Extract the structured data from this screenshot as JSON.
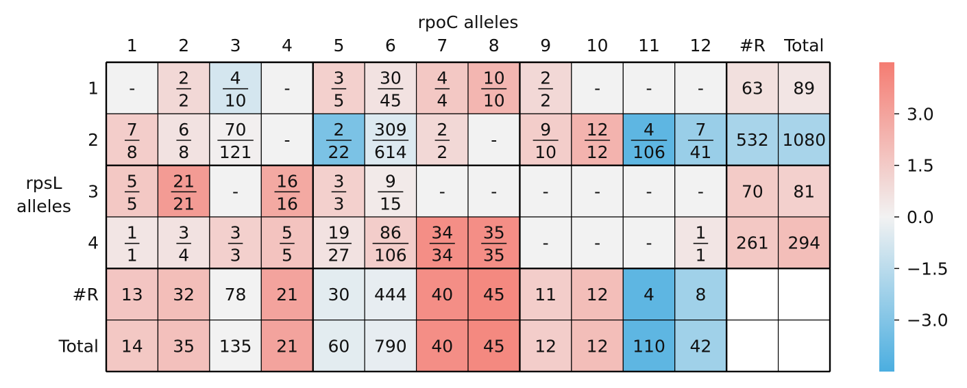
{
  "chart_data": {
    "type": "heatmap",
    "title": "rpoC alleles",
    "xlabel": "rpoC alleles",
    "ylabel": "rpsL alleles",
    "col_labels": [
      "1",
      "2",
      "3",
      "4",
      "5",
      "6",
      "7",
      "8",
      "9",
      "10",
      "11",
      "12",
      "#R",
      "Total"
    ],
    "row_labels": [
      "1",
      "2",
      "3",
      "4",
      "#R",
      "Total"
    ],
    "cells": [
      [
        {
          "text": "-",
          "score": 0
        },
        {
          "num": "2",
          "den": "2",
          "score": 1.0
        },
        {
          "num": "4",
          "den": "10",
          "score": -0.8
        },
        {
          "text": "-",
          "score": 0
        },
        {
          "num": "3",
          "den": "5",
          "score": 1.3
        },
        {
          "num": "30",
          "den": "45",
          "score": 0.6
        },
        {
          "num": "4",
          "den": "4",
          "score": 1.6
        },
        {
          "num": "10",
          "den": "10",
          "score": 2.3
        },
        {
          "num": "2",
          "den": "2",
          "score": 1.0
        },
        {
          "text": "-",
          "score": 0
        },
        {
          "text": "-",
          "score": 0
        },
        {
          "text": "-",
          "score": 0
        },
        {
          "text": "63",
          "score": 0.7
        },
        {
          "text": "89",
          "score": 0.5
        }
      ],
      [
        {
          "num": "7",
          "den": "8",
          "score": 1.4
        },
        {
          "num": "6",
          "den": "8",
          "score": 0.6
        },
        {
          "num": "70",
          "den": "121",
          "score": 0.1
        },
        {
          "text": "-",
          "score": 0
        },
        {
          "num": "2",
          "den": "22",
          "score": -3.2
        },
        {
          "num": "309",
          "den": "614",
          "score": -0.6
        },
        {
          "num": "2",
          "den": "2",
          "score": 1.0
        },
        {
          "text": "-",
          "score": 0
        },
        {
          "num": "9",
          "den": "10",
          "score": 1.4
        },
        {
          "num": "12",
          "den": "12",
          "score": 2.4
        },
        {
          "num": "4",
          "den": "106",
          "score": -4.0
        },
        {
          "num": "7",
          "den": "41",
          "score": -2.4
        },
        {
          "text": "532",
          "score": -2.0
        },
        {
          "text": "1080",
          "score": -2.0
        }
      ],
      [
        {
          "num": "5",
          "den": "5",
          "score": 1.6
        },
        {
          "num": "21",
          "den": "21",
          "score": 3.3
        },
        {
          "text": "-",
          "score": 0
        },
        {
          "num": "16",
          "den": "16",
          "score": 2.8
        },
        {
          "num": "3",
          "den": "3",
          "score": 1.3
        },
        {
          "num": "9",
          "den": "15",
          "score": 0.3
        },
        {
          "text": "-",
          "score": 0
        },
        {
          "text": "-",
          "score": 0
        },
        {
          "text": "-",
          "score": 0
        },
        {
          "text": "-",
          "score": 0
        },
        {
          "text": "-",
          "score": 0
        },
        {
          "text": "-",
          "score": 0
        },
        {
          "text": "70",
          "score": 1.5
        },
        {
          "text": "81",
          "score": 1.3
        }
      ],
      [
        {
          "num": "1",
          "den": "1",
          "score": 0.5
        },
        {
          "num": "3",
          "den": "4",
          "score": 0.6
        },
        {
          "num": "3",
          "den": "3",
          "score": 1.3
        },
        {
          "num": "5",
          "den": "5",
          "score": 1.8
        },
        {
          "num": "19",
          "den": "27",
          "score": 0.6
        },
        {
          "num": "86",
          "den": "106",
          "score": 1.4
        },
        {
          "num": "34",
          "den": "34",
          "score": 3.8
        },
        {
          "num": "35",
          "den": "35",
          "score": 3.8
        },
        {
          "text": "-",
          "score": 0
        },
        {
          "text": "-",
          "score": 0
        },
        {
          "text": "-",
          "score": 0
        },
        {
          "num": "1",
          "den": "1",
          "score": 0.5
        },
        {
          "text": "261",
          "score": 1.6
        },
        {
          "text": "294",
          "score": 2.0
        }
      ],
      [
        {
          "text": "13",
          "score": 1.7
        },
        {
          "text": "32",
          "score": 2.0
        },
        {
          "text": "78",
          "score": 0
        },
        {
          "text": "21",
          "score": 3.0
        },
        {
          "text": "30",
          "score": -0.4
        },
        {
          "text": "444",
          "score": -0.3
        },
        {
          "text": "40",
          "score": 3.8
        },
        {
          "text": "45",
          "score": 4.0
        },
        {
          "text": "11",
          "score": 1.4
        },
        {
          "text": "12",
          "score": 2.0
        },
        {
          "text": "4",
          "score": -4.0
        },
        {
          "text": "8",
          "score": -2.2
        },
        {
          "text": "",
          "score": null
        },
        {
          "text": "",
          "score": null
        }
      ],
      [
        {
          "text": "14",
          "score": 1.6
        },
        {
          "text": "35",
          "score": 1.9
        },
        {
          "text": "135",
          "score": 0
        },
        {
          "text": "21",
          "score": 3.0
        },
        {
          "text": "60",
          "score": -0.4
        },
        {
          "text": "790",
          "score": -0.3
        },
        {
          "text": "40",
          "score": 3.8
        },
        {
          "text": "45",
          "score": 4.0
        },
        {
          "text": "12",
          "score": 1.4
        },
        {
          "text": "12",
          "score": 2.0
        },
        {
          "text": "110",
          "score": -4.0
        },
        {
          "text": "42",
          "score": -2.2
        },
        {
          "text": "",
          "score": null
        },
        {
          "text": "",
          "score": null
        }
      ]
    ],
    "colorbar": {
      "ticks": [
        "3.0",
        "1.5",
        "0.0",
        "−1.5",
        "−3.0"
      ],
      "tick_values": [
        3.0,
        1.5,
        0.0,
        -1.5,
        -3.0
      ],
      "range": [
        -4.5,
        4.5
      ]
    },
    "colors": {
      "negative_max": "#4baee0",
      "neutral": "#f2f2f2",
      "positive_max": "#f47c72",
      "empty": "#ffffff",
      "grid": "#000000"
    }
  }
}
